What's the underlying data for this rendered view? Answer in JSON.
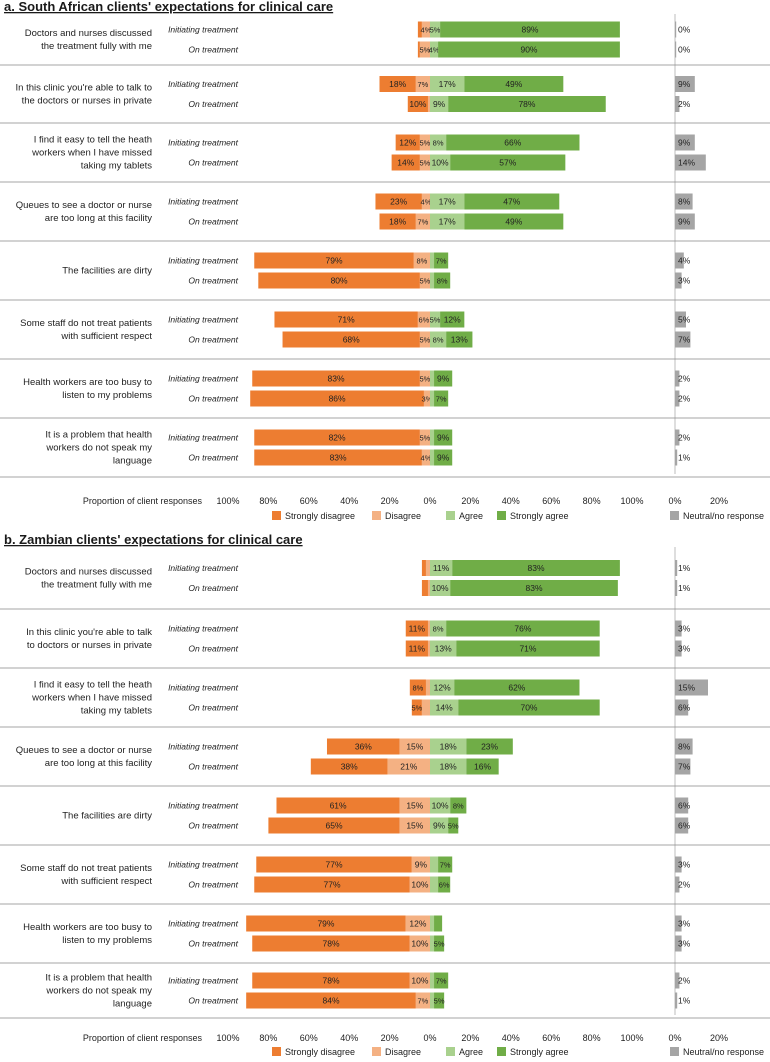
{
  "colors": {
    "strongly_disagree": "#ED7D31",
    "disagree": "#F4B183",
    "agree": "#A9D18E",
    "strongly_agree": "#70AD47",
    "neutral": "#A5A5A5",
    "separator": "#888888"
  },
  "chart_data": [
    {
      "type": "bar",
      "subtype": "diverging-stacked-horizontal",
      "title": "a. South African clients' expectations for clinical care",
      "xlabel": "Proportion of client responses",
      "xlim": [
        -100,
        100
      ],
      "xticks": [
        "100%",
        "80%",
        "60%",
        "40%",
        "20%",
        "0%",
        "20%",
        "40%",
        "60%",
        "80%",
        "100%"
      ],
      "neutral_ticks": [
        "0%",
        "20%"
      ],
      "legend": [
        "Strongly disagree",
        "Disagree",
        "Agree",
        "Strongly agree"
      ],
      "neutral_legend": "Neutral/no response",
      "groups": [
        {
          "question": [
            "Doctors and nurses discussed",
            "the treatment fully with me"
          ],
          "rows": [
            {
              "label": "Initiating treatment",
              "sd": 2,
              "d": 4,
              "a": 5,
              "sa": 89,
              "n": 0,
              "labels": {
                "d": "4%",
                "a": "5%",
                "sa": "89%",
                "n": "0%"
              }
            },
            {
              "label": "On treatment",
              "sd": 1,
              "d": 5,
              "a": 4,
              "sa": 90,
              "n": 0,
              "labels": {
                "d": "5%",
                "a": "4%",
                "sa": "90%",
                "n": "0%"
              }
            }
          ]
        },
        {
          "question": [
            "In this clinic you're able to talk to",
            "the doctors or nurses in private"
          ],
          "rows": [
            {
              "label": "Initiating treatment",
              "sd": 18,
              "d": 7,
              "a": 17,
              "sa": 49,
              "n": 9,
              "labels": {
                "sd": "18%",
                "d": "7%",
                "a": "17%",
                "sa": "49%",
                "n": "9%"
              }
            },
            {
              "label": "On treatment",
              "sd": 10,
              "d": 1,
              "a": 9,
              "sa": 78,
              "n": 2,
              "labels": {
                "sd": "10%",
                "a": "9%",
                "sa": "78%",
                "n": "2%"
              }
            }
          ]
        },
        {
          "question": [
            "I find it easy to tell the heath",
            "workers when I have missed",
            "taking my tablets"
          ],
          "rows": [
            {
              "label": "Initiating treatment",
              "sd": 12,
              "d": 5,
              "a": 8,
              "sa": 66,
              "n": 9,
              "labels": {
                "sd": "12%",
                "d": "5%",
                "a": "8%",
                "sa": "66%",
                "n": "9%"
              }
            },
            {
              "label": "On treatment",
              "sd": 14,
              "d": 5,
              "a": 10,
              "sa": 57,
              "n": 14,
              "labels": {
                "sd": "14%",
                "d": "5%",
                "a": "10%",
                "sa": "57%",
                "n": "14%"
              }
            }
          ]
        },
        {
          "question": [
            "Queues to see a doctor or nurse",
            "are too long at this facility"
          ],
          "rows": [
            {
              "label": "Initiating treatment",
              "sd": 23,
              "d": 4,
              "a": 17,
              "sa": 47,
              "n": 8,
              "labels": {
                "sd": "23%",
                "d": "4%",
                "a": "17%",
                "sa": "47%",
                "n": "8%"
              }
            },
            {
              "label": "On treatment",
              "sd": 18,
              "d": 7,
              "a": 17,
              "sa": 49,
              "n": 9,
              "labels": {
                "sd": "18%",
                "d": "7%",
                "a": "17%",
                "sa": "49%",
                "n": "9%"
              }
            }
          ]
        },
        {
          "question": [
            "The facilities are dirty"
          ],
          "rows": [
            {
              "label": "Initiating treatment",
              "sd": 79,
              "d": 8,
              "a": 2,
              "sa": 7,
              "n": 4,
              "labels": {
                "sd": "79%",
                "d": "8%",
                "sa": "7%",
                "n": "4%"
              }
            },
            {
              "label": "On treatment",
              "sd": 80,
              "d": 5,
              "a": 2,
              "sa": 8,
              "n": 3,
              "labels": {
                "sd": "80%",
                "d": "5%",
                "sa": "8%",
                "n": "3%"
              }
            }
          ]
        },
        {
          "question": [
            "Some staff do not treat patients",
            "with sufficient respect"
          ],
          "rows": [
            {
              "label": "Initiating treatment",
              "sd": 71,
              "d": 6,
              "a": 5,
              "sa": 12,
              "n": 5,
              "labels": {
                "sd": "71%",
                "d": "6%",
                "a": "5%",
                "sa": "12%",
                "n": "5%"
              }
            },
            {
              "label": "On treatment",
              "sd": 68,
              "d": 5,
              "a": 8,
              "sa": 13,
              "n": 7,
              "labels": {
                "sd": "68%",
                "d": "5%",
                "a": "8%",
                "sa": "13%",
                "n": "7%"
              }
            }
          ]
        },
        {
          "question": [
            "Health workers are too busy to",
            "listen to my problems"
          ],
          "rows": [
            {
              "label": "Initiating treatment",
              "sd": 83,
              "d": 5,
              "a": 2,
              "sa": 9,
              "n": 2,
              "labels": {
                "sd": "83%",
                "d": "5%",
                "sa": "9%",
                "n": "2%"
              }
            },
            {
              "label": "On treatment",
              "sd": 86,
              "d": 3,
              "a": 2,
              "sa": 7,
              "n": 2,
              "labels": {
                "sd": "86%",
                "d": "3%",
                "sa": "7%",
                "n": "2%"
              }
            }
          ]
        },
        {
          "question": [
            "It is a problem that health",
            "workers do not speak my",
            "language"
          ],
          "rows": [
            {
              "label": "Initiating treatment",
              "sd": 82,
              "d": 5,
              "a": 2,
              "sa": 9,
              "n": 2,
              "labels": {
                "sd": "82%",
                "d": "5%",
                "sa": "9%",
                "n": "2%"
              }
            },
            {
              "label": "On treatment",
              "sd": 83,
              "d": 4,
              "a": 2,
              "sa": 9,
              "n": 1,
              "labels": {
                "sd": "83%",
                "d": "4%",
                "sa": "9%",
                "n": "1%"
              }
            }
          ]
        }
      ]
    },
    {
      "type": "bar",
      "subtype": "diverging-stacked-horizontal",
      "title": "b. Zambian clients' expectations for clinical care",
      "xlabel": "Proportion of client responses",
      "xlim": [
        -100,
        100
      ],
      "xticks": [
        "100%",
        "80%",
        "60%",
        "40%",
        "20%",
        "0%",
        "20%",
        "40%",
        "60%",
        "80%",
        "100%"
      ],
      "neutral_ticks": [
        "0%",
        "20%"
      ],
      "legend": [
        "Strongly disagree",
        "Disagree",
        "Agree",
        "Strongly agree"
      ],
      "neutral_legend": "Neutral/no response",
      "groups": [
        {
          "question": [
            "Doctors and nurses discussed",
            "the treatment fully with me"
          ],
          "rows": [
            {
              "label": "Initiating treatment",
              "sd": 2,
              "d": 2,
              "a": 11,
              "sa": 83,
              "n": 1,
              "labels": {
                "a": "11%",
                "sa": "83%",
                "n": "1%"
              }
            },
            {
              "label": "On treatment",
              "sd": 3,
              "d": 1,
              "a": 10,
              "sa": 83,
              "n": 1,
              "labels": {
                "a": "10%",
                "sa": "83%",
                "n": "1%"
              }
            }
          ]
        },
        {
          "question": [
            "In this clinic you're able to talk",
            "to doctors or nurses in private"
          ],
          "rows": [
            {
              "label": "Initiating treatment",
              "sd": 11,
              "d": 1,
              "a": 8,
              "sa": 76,
              "n": 3,
              "labels": {
                "sd": "11%",
                "a": "8%",
                "sa": "76%",
                "n": "3%"
              }
            },
            {
              "label": "On treatment",
              "sd": 11,
              "d": 1,
              "a": 13,
              "sa": 71,
              "n": 3,
              "labels": {
                "sd": "11%",
                "a": "13%",
                "sa": "71%",
                "n": "3%"
              }
            }
          ]
        },
        {
          "question": [
            "I find it easy to tell the heath",
            "workers when I have missed",
            "taking my tablets"
          ],
          "rows": [
            {
              "label": "Initiating treatment",
              "sd": 8,
              "d": 2,
              "a": 12,
              "sa": 62,
              "n": 15,
              "labels": {
                "sd": "8%",
                "a": "12%",
                "sa": "62%",
                "n": "15%"
              }
            },
            {
              "label": "On treatment",
              "sd": 5,
              "d": 4,
              "a": 14,
              "sa": 70,
              "n": 6,
              "labels": {
                "sd": "5%",
                "a": "14%",
                "sa": "70%",
                "n": "6%"
              }
            }
          ]
        },
        {
          "question": [
            "Queues to see a doctor or nurse",
            "are too long at this facility"
          ],
          "rows": [
            {
              "label": "Initiating treatment",
              "sd": 36,
              "d": 15,
              "a": 18,
              "sa": 23,
              "n": 8,
              "labels": {
                "sd": "36%",
                "d": "15%",
                "a": "18%",
                "sa": "23%",
                "n": "8%"
              }
            },
            {
              "label": "On treatment",
              "sd": 38,
              "d": 21,
              "a": 18,
              "sa": 16,
              "n": 7,
              "labels": {
                "sd": "38%",
                "d": "21%",
                "a": "18%",
                "sa": "16%",
                "n": "7%"
              }
            }
          ]
        },
        {
          "question": [
            "The facilities are dirty"
          ],
          "rows": [
            {
              "label": "Initiating treatment",
              "sd": 61,
              "d": 15,
              "a": 10,
              "sa": 8,
              "n": 6,
              "labels": {
                "sd": "61%",
                "d": "15%",
                "a": "10%",
                "sa": "8%",
                "n": "6%"
              }
            },
            {
              "label": "On treatment",
              "sd": 65,
              "d": 15,
              "a": 9,
              "sa": 5,
              "n": 6,
              "labels": {
                "sd": "65%",
                "d": "15%",
                "a": "9%",
                "sa": "5%",
                "n": "6%"
              }
            }
          ]
        },
        {
          "question": [
            "Some staff do not treat patients",
            "with sufficient respect"
          ],
          "rows": [
            {
              "label": "Initiating treatment",
              "sd": 77,
              "d": 9,
              "a": 4,
              "sa": 7,
              "n": 3,
              "labels": {
                "sd": "77%",
                "d": "9%",
                "sa": "7%",
                "n": "3%"
              }
            },
            {
              "label": "On treatment",
              "sd": 77,
              "d": 10,
              "a": 4,
              "sa": 6,
              "n": 2,
              "labels": {
                "sd": "77%",
                "d": "10%",
                "sa": "6%",
                "n": "2%"
              }
            }
          ]
        },
        {
          "question": [
            "Health workers are too busy to",
            "listen to my problems"
          ],
          "rows": [
            {
              "label": "Initiating treatment",
              "sd": 79,
              "d": 12,
              "a": 2,
              "sa": 4,
              "n": 3,
              "labels": {
                "sd": "79%",
                "d": "12%",
                "n": "3%"
              }
            },
            {
              "label": "On treatment",
              "sd": 78,
              "d": 10,
              "a": 2,
              "sa": 5,
              "n": 3,
              "labels": {
                "sd": "78%",
                "d": "10%",
                "sa": "5%",
                "n": "3%"
              }
            }
          ]
        },
        {
          "question": [
            "It is a problem that health",
            "workers do not speak my",
            "language"
          ],
          "rows": [
            {
              "label": "Initiating treatment",
              "sd": 78,
              "d": 10,
              "a": 2,
              "sa": 7,
              "n": 2,
              "labels": {
                "sd": "78%",
                "d": "10%",
                "sa": "7%",
                "n": "2%"
              }
            },
            {
              "label": "On treatment",
              "sd": 84,
              "d": 7,
              "a": 2,
              "sa": 5,
              "n": 1,
              "labels": {
                "sd": "84%",
                "d": "7%",
                "sa": "5%",
                "n": "1%"
              }
            }
          ]
        }
      ]
    }
  ]
}
